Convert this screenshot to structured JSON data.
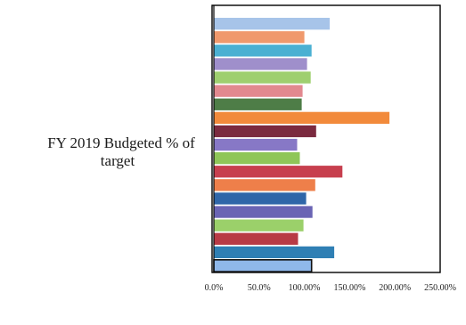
{
  "chart_data": {
    "type": "bar",
    "orientation": "horizontal",
    "category_label": "FY 2019 Budgeted % of target",
    "xlim": [
      0,
      250
    ],
    "xticks": [
      "0.0%",
      "50.0%",
      "100.00%",
      "150.00%",
      "200.00%",
      "250.00%"
    ],
    "grid": false,
    "legend": "none",
    "series": [
      {
        "values": [
          128,
          100,
          108,
          103,
          107,
          98,
          97,
          194,
          113,
          92,
          95,
          142,
          112,
          102,
          109,
          99,
          93,
          133,
          108
        ],
        "colors": [
          "#a7c4e9",
          "#f0996c",
          "#4bb0d2",
          "#9f8fcb",
          "#9fcf6f",
          "#e2898f",
          "#4e7d47",
          "#f28a3b",
          "#7b2a3f",
          "#8778c6",
          "#8fc659",
          "#c73f4e",
          "#ee7f4a",
          "#2f66a8",
          "#6a64b4",
          "#9bd06a",
          "#b83a45",
          "#2f7fb4",
          "#8fb8ea"
        ]
      }
    ]
  }
}
